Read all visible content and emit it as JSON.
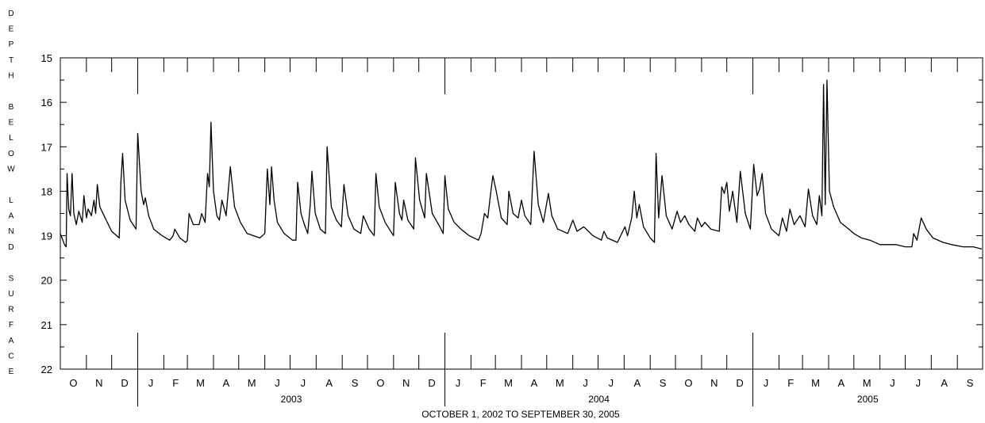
{
  "chart_data": {
    "type": "line",
    "ylabel_letters": [
      "D",
      "E",
      "P",
      "T",
      "H",
      "B",
      "E",
      "L",
      "O",
      "W",
      "L",
      "A",
      "N",
      "D",
      "S",
      "U",
      "R",
      "F",
      "A",
      "C",
      "E"
    ],
    "ylabel_groups": [
      5,
      5,
      4,
      7
    ],
    "xlabel": "OCTOBER 1, 2002  TO  SEPTEMBER 30, 2005",
    "y_reversed": true,
    "ylim": [
      15,
      22
    ],
    "y_ticks": [
      15,
      16,
      17,
      18,
      19,
      20,
      21,
      22
    ],
    "x_range": [
      "2002-10-01",
      "2005-09-30"
    ],
    "month_labels": [
      "O",
      "N",
      "D",
      "J",
      "F",
      "M",
      "A",
      "M",
      "J",
      "J",
      "A",
      "S",
      "O",
      "N",
      "D",
      "J",
      "F",
      "M",
      "A",
      "M",
      "J",
      "J",
      "A",
      "S",
      "O",
      "N",
      "D",
      "J",
      "F",
      "M",
      "A",
      "M",
      "J",
      "J",
      "A",
      "S"
    ],
    "year_labels": [
      {
        "label": "2003",
        "start": "2003-01-01",
        "end": "2003-12-31"
      },
      {
        "label": "2004",
        "start": "2004-01-01",
        "end": "2004-12-31"
      },
      {
        "label": "2005",
        "start": "2005-01-01",
        "end": "2005-09-30"
      }
    ],
    "series": [
      {
        "color": "#000000",
        "points": [
          [
            "2002-10-01",
            18.95
          ],
          [
            "2002-10-06",
            19.2
          ],
          [
            "2002-10-08",
            19.25
          ],
          [
            "2002-10-09",
            17.6
          ],
          [
            "2002-10-11",
            18.4
          ],
          [
            "2002-10-13",
            18.55
          ],
          [
            "2002-10-15",
            17.6
          ],
          [
            "2002-10-17",
            18.5
          ],
          [
            "2002-10-20",
            18.75
          ],
          [
            "2002-10-23",
            18.45
          ],
          [
            "2002-10-27",
            18.7
          ],
          [
            "2002-10-29",
            18.1
          ],
          [
            "2002-11-01",
            18.6
          ],
          [
            "2002-11-03",
            18.4
          ],
          [
            "2002-11-07",
            18.55
          ],
          [
            "2002-11-10",
            18.2
          ],
          [
            "2002-11-12",
            18.5
          ],
          [
            "2002-11-14",
            17.85
          ],
          [
            "2002-11-17",
            18.35
          ],
          [
            "2002-11-22",
            18.55
          ],
          [
            "2002-12-01",
            18.9
          ],
          [
            "2002-12-10",
            19.05
          ],
          [
            "2002-12-12",
            17.8
          ],
          [
            "2002-12-14",
            17.15
          ],
          [
            "2002-12-17",
            18.2
          ],
          [
            "2002-12-23",
            18.65
          ],
          [
            "2002-12-30",
            18.85
          ],
          [
            "2003-01-01",
            16.7
          ],
          [
            "2003-01-05",
            18.0
          ],
          [
            "2003-01-08",
            18.3
          ],
          [
            "2003-01-10",
            18.15
          ],
          [
            "2003-01-14",
            18.55
          ],
          [
            "2003-01-20",
            18.85
          ],
          [
            "2003-01-30",
            19.0
          ],
          [
            "2003-02-08",
            19.1
          ],
          [
            "2003-02-12",
            19.0
          ],
          [
            "2003-02-14",
            18.85
          ],
          [
            "2003-02-20",
            19.05
          ],
          [
            "2003-02-27",
            19.15
          ],
          [
            "2003-03-01",
            19.1
          ],
          [
            "2003-03-03",
            18.5
          ],
          [
            "2003-03-08",
            18.75
          ],
          [
            "2003-03-15",
            18.75
          ],
          [
            "2003-03-18",
            18.5
          ],
          [
            "2003-03-22",
            18.7
          ],
          [
            "2003-03-25",
            17.6
          ],
          [
            "2003-03-27",
            17.9
          ],
          [
            "2003-03-29",
            16.45
          ],
          [
            "2003-04-01",
            18.0
          ],
          [
            "2003-04-05",
            18.55
          ],
          [
            "2003-04-08",
            18.65
          ],
          [
            "2003-04-11",
            18.2
          ],
          [
            "2003-04-16",
            18.55
          ],
          [
            "2003-04-21",
            17.45
          ],
          [
            "2003-04-26",
            18.35
          ],
          [
            "2003-05-03",
            18.7
          ],
          [
            "2003-05-11",
            18.95
          ],
          [
            "2003-05-26",
            19.05
          ],
          [
            "2003-06-01",
            18.95
          ],
          [
            "2003-06-04",
            17.5
          ],
          [
            "2003-06-07",
            18.3
          ],
          [
            "2003-06-09",
            17.45
          ],
          [
            "2003-06-12",
            18.2
          ],
          [
            "2003-06-16",
            18.7
          ],
          [
            "2003-06-24",
            18.95
          ],
          [
            "2003-07-04",
            19.1
          ],
          [
            "2003-07-08",
            19.1
          ],
          [
            "2003-07-10",
            17.8
          ],
          [
            "2003-07-14",
            18.5
          ],
          [
            "2003-07-18",
            18.75
          ],
          [
            "2003-07-22",
            18.95
          ],
          [
            "2003-07-25",
            18.3
          ],
          [
            "2003-07-27",
            17.55
          ],
          [
            "2003-07-31",
            18.5
          ],
          [
            "2003-08-06",
            18.85
          ],
          [
            "2003-08-12",
            18.95
          ],
          [
            "2003-08-14",
            17.0
          ],
          [
            "2003-08-19",
            18.35
          ],
          [
            "2003-08-25",
            18.65
          ],
          [
            "2003-08-31",
            18.8
          ],
          [
            "2003-09-03",
            17.85
          ],
          [
            "2003-09-08",
            18.55
          ],
          [
            "2003-09-15",
            18.85
          ],
          [
            "2003-09-23",
            18.95
          ],
          [
            "2003-09-26",
            18.55
          ],
          [
            "2003-10-03",
            18.85
          ],
          [
            "2003-10-09",
            19.0
          ],
          [
            "2003-10-11",
            17.6
          ],
          [
            "2003-10-15",
            18.35
          ],
          [
            "2003-10-22",
            18.7
          ],
          [
            "2003-10-27",
            18.85
          ],
          [
            "2003-11-01",
            19.0
          ],
          [
            "2003-11-03",
            17.8
          ],
          [
            "2003-11-08",
            18.5
          ],
          [
            "2003-11-11",
            18.65
          ],
          [
            "2003-11-13",
            18.2
          ],
          [
            "2003-11-18",
            18.65
          ],
          [
            "2003-11-25",
            18.85
          ],
          [
            "2003-11-27",
            17.25
          ],
          [
            "2003-12-02",
            18.2
          ],
          [
            "2003-12-08",
            18.6
          ],
          [
            "2003-12-10",
            17.6
          ],
          [
            "2003-12-17",
            18.5
          ],
          [
            "2003-12-26",
            18.8
          ],
          [
            "2003-12-30",
            18.95
          ],
          [
            "2004-01-01",
            17.65
          ],
          [
            "2004-01-05",
            18.4
          ],
          [
            "2004-01-12",
            18.7
          ],
          [
            "2004-01-20",
            18.85
          ],
          [
            "2004-01-30",
            19.0
          ],
          [
            "2004-02-10",
            19.1
          ],
          [
            "2004-02-13",
            18.95
          ],
          [
            "2004-02-17",
            18.5
          ],
          [
            "2004-02-21",
            18.6
          ],
          [
            "2004-02-24",
            18.1
          ],
          [
            "2004-02-27",
            17.65
          ],
          [
            "2004-03-02",
            18.0
          ],
          [
            "2004-03-08",
            18.6
          ],
          [
            "2004-03-15",
            18.75
          ],
          [
            "2004-03-17",
            18.0
          ],
          [
            "2004-03-22",
            18.5
          ],
          [
            "2004-03-28",
            18.6
          ],
          [
            "2004-04-01",
            18.2
          ],
          [
            "2004-04-05",
            18.55
          ],
          [
            "2004-04-12",
            18.75
          ],
          [
            "2004-04-16",
            17.1
          ],
          [
            "2004-04-21",
            18.3
          ],
          [
            "2004-04-27",
            18.7
          ],
          [
            "2004-05-03",
            18.05
          ],
          [
            "2004-05-07",
            18.55
          ],
          [
            "2004-05-14",
            18.85
          ],
          [
            "2004-05-26",
            18.95
          ],
          [
            "2004-06-01",
            18.65
          ],
          [
            "2004-06-06",
            18.9
          ],
          [
            "2004-06-14",
            18.8
          ],
          [
            "2004-06-25",
            19.0
          ],
          [
            "2004-07-05",
            19.1
          ],
          [
            "2004-07-08",
            18.9
          ],
          [
            "2004-07-12",
            19.05
          ],
          [
            "2004-07-24",
            19.15
          ],
          [
            "2004-08-02",
            18.8
          ],
          [
            "2004-08-05",
            19.0
          ],
          [
            "2004-08-10",
            18.6
          ],
          [
            "2004-08-13",
            18.0
          ],
          [
            "2004-08-16",
            18.6
          ],
          [
            "2004-08-19",
            18.3
          ],
          [
            "2004-08-24",
            18.8
          ],
          [
            "2004-09-01",
            19.05
          ],
          [
            "2004-09-06",
            19.15
          ],
          [
            "2004-09-08",
            17.15
          ],
          [
            "2004-09-11",
            18.6
          ],
          [
            "2004-09-15",
            17.65
          ],
          [
            "2004-09-20",
            18.55
          ],
          [
            "2004-09-27",
            18.85
          ],
          [
            "2004-10-03",
            18.45
          ],
          [
            "2004-10-07",
            18.7
          ],
          [
            "2004-10-12",
            18.55
          ],
          [
            "2004-10-17",
            18.75
          ],
          [
            "2004-10-24",
            18.9
          ],
          [
            "2004-10-27",
            18.6
          ],
          [
            "2004-11-01",
            18.8
          ],
          [
            "2004-11-05",
            18.7
          ],
          [
            "2004-11-12",
            18.85
          ],
          [
            "2004-11-22",
            18.9
          ],
          [
            "2004-11-25",
            17.9
          ],
          [
            "2004-11-28",
            18.05
          ],
          [
            "2004-12-01",
            17.8
          ],
          [
            "2004-12-04",
            18.45
          ],
          [
            "2004-12-08",
            18.0
          ],
          [
            "2004-12-13",
            18.7
          ],
          [
            "2004-12-17",
            17.55
          ],
          [
            "2004-12-23",
            18.5
          ],
          [
            "2004-12-29",
            18.85
          ],
          [
            "2005-01-02",
            17.4
          ],
          [
            "2005-01-06",
            18.1
          ],
          [
            "2005-01-09",
            17.95
          ],
          [
            "2005-01-12",
            17.6
          ],
          [
            "2005-01-16",
            18.5
          ],
          [
            "2005-01-23",
            18.85
          ],
          [
            "2005-02-01",
            19.0
          ],
          [
            "2005-02-05",
            18.6
          ],
          [
            "2005-02-10",
            18.9
          ],
          [
            "2005-02-14",
            18.4
          ],
          [
            "2005-02-19",
            18.75
          ],
          [
            "2005-02-26",
            18.55
          ],
          [
            "2005-03-04",
            18.8
          ],
          [
            "2005-03-08",
            17.95
          ],
          [
            "2005-03-13",
            18.55
          ],
          [
            "2005-03-18",
            18.75
          ],
          [
            "2005-03-21",
            18.1
          ],
          [
            "2005-03-24",
            18.55
          ],
          [
            "2005-03-26",
            15.6
          ],
          [
            "2005-03-28",
            18.3
          ],
          [
            "2005-03-30",
            15.5
          ],
          [
            "2005-04-02",
            18.0
          ],
          [
            "2005-04-07",
            18.35
          ],
          [
            "2005-04-15",
            18.7
          ],
          [
            "2005-04-25",
            18.85
          ],
          [
            "2005-05-01",
            18.95
          ],
          [
            "2005-05-10",
            19.05
          ],
          [
            "2005-05-20",
            19.1
          ],
          [
            "2005-06-01",
            19.2
          ],
          [
            "2005-06-20",
            19.2
          ],
          [
            "2005-07-01",
            19.25
          ],
          [
            "2005-07-09",
            19.25
          ],
          [
            "2005-07-11",
            18.95
          ],
          [
            "2005-07-15",
            19.1
          ],
          [
            "2005-07-20",
            18.6
          ],
          [
            "2005-07-26",
            18.85
          ],
          [
            "2005-08-03",
            19.05
          ],
          [
            "2005-08-15",
            19.15
          ],
          [
            "2005-08-25",
            19.2
          ],
          [
            "2005-09-08",
            19.25
          ],
          [
            "2005-09-20",
            19.25
          ],
          [
            "2005-09-30",
            19.3
          ]
        ]
      }
    ]
  }
}
